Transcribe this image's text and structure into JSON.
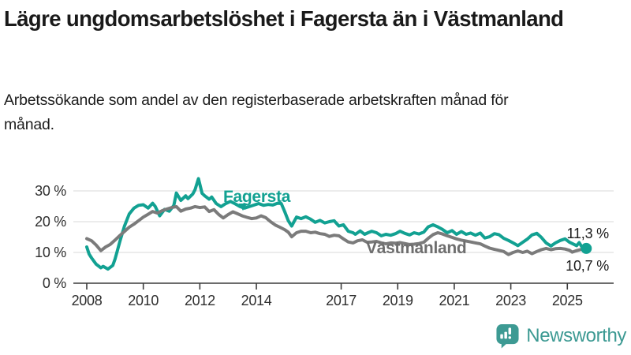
{
  "header": {
    "title": "Lägre ungdomsarbetslöshet i Fagersta än i Västmanland",
    "subtitle": "Arbetssökande som andel av den registerbaserade arbetskraften månad för månad."
  },
  "colors": {
    "fagersta": "#12a192",
    "vastmanland": "#7b7b7b",
    "vastmanland_label": "#6e6e6e",
    "grid": "#d8d8d8",
    "axis": "#3c3c3c",
    "text": "#1a1a1a",
    "logo": "#3d9a93",
    "background": "#ffffff"
  },
  "footer": {
    "brand": "Newsworthy"
  },
  "chart_data": {
    "type": "line",
    "title": "Lägre ungdomsarbetslöshet i Fagersta än i Västmanland",
    "xlabel": "",
    "ylabel": "",
    "x_unit": "decimal year (monthly series 2008–2025)",
    "ylim": [
      0,
      35
    ],
    "xlim": [
      2007.5,
      2026.3
    ],
    "grid": "horizontal",
    "legend": "inline series labels",
    "y_ticks": [
      {
        "value": 0,
        "label": "0 %"
      },
      {
        "value": 10,
        "label": "10 %"
      },
      {
        "value": 20,
        "label": "20 %"
      },
      {
        "value": 30,
        "label": "30 %"
      }
    ],
    "x_ticks": [
      {
        "value": 2008,
        "label": "2008"
      },
      {
        "value": 2010,
        "label": "2010"
      },
      {
        "value": 2012,
        "label": "2012"
      },
      {
        "value": 2014,
        "label": "2014"
      },
      {
        "value": 2017,
        "label": "2017"
      },
      {
        "value": 2019,
        "label": "2019"
      },
      {
        "value": 2021,
        "label": "2021"
      },
      {
        "value": 2023,
        "label": "2023"
      },
      {
        "value": 2025,
        "label": "2025"
      }
    ],
    "series": [
      {
        "name": "Fagersta",
        "color": "#12a192",
        "end_label": "11,3 %",
        "end_value": 11.3,
        "points": [
          [
            2008.0,
            11.8
          ],
          [
            2008.08,
            9.5
          ],
          [
            2008.17,
            8.2
          ],
          [
            2008.33,
            6.2
          ],
          [
            2008.5,
            5.0
          ],
          [
            2008.58,
            5.5
          ],
          [
            2008.75,
            4.6
          ],
          [
            2008.92,
            5.8
          ],
          [
            2009.0,
            7.8
          ],
          [
            2009.08,
            10.5
          ],
          [
            2009.17,
            13.5
          ],
          [
            2009.33,
            18.5
          ],
          [
            2009.5,
            22.5
          ],
          [
            2009.67,
            24.4
          ],
          [
            2009.83,
            25.3
          ],
          [
            2010.0,
            25.5
          ],
          [
            2010.17,
            24.4
          ],
          [
            2010.33,
            26.0
          ],
          [
            2010.42,
            25.0
          ],
          [
            2010.58,
            21.9
          ],
          [
            2010.75,
            24.0
          ],
          [
            2010.92,
            23.4
          ],
          [
            2011.08,
            25.3
          ],
          [
            2011.17,
            29.3
          ],
          [
            2011.33,
            26.9
          ],
          [
            2011.5,
            28.4
          ],
          [
            2011.58,
            27.5
          ],
          [
            2011.75,
            29.0
          ],
          [
            2011.83,
            30.4
          ],
          [
            2011.95,
            34.0
          ],
          [
            2012.08,
            29.2
          ],
          [
            2012.17,
            28.4
          ],
          [
            2012.33,
            27.3
          ],
          [
            2012.42,
            28.0
          ],
          [
            2012.58,
            25.9
          ],
          [
            2012.75,
            24.9
          ],
          [
            2012.92,
            25.9
          ],
          [
            2013.08,
            26.6
          ],
          [
            2013.25,
            25.8
          ],
          [
            2013.42,
            24.9
          ],
          [
            2013.58,
            24.4
          ],
          [
            2013.75,
            24.9
          ],
          [
            2013.92,
            25.4
          ],
          [
            2014.08,
            25.9
          ],
          [
            2014.25,
            25.3
          ],
          [
            2014.42,
            25.6
          ],
          [
            2014.58,
            25.4
          ],
          [
            2014.75,
            26.0
          ],
          [
            2014.88,
            25.9
          ],
          [
            2015.0,
            23.3
          ],
          [
            2015.13,
            20.3
          ],
          [
            2015.25,
            18.6
          ],
          [
            2015.42,
            21.5
          ],
          [
            2015.58,
            21.0
          ],
          [
            2015.75,
            21.6
          ],
          [
            2015.92,
            20.8
          ],
          [
            2016.08,
            19.8
          ],
          [
            2016.25,
            20.4
          ],
          [
            2016.42,
            19.6
          ],
          [
            2016.58,
            20.0
          ],
          [
            2016.75,
            20.3
          ],
          [
            2016.92,
            18.6
          ],
          [
            2017.08,
            19.0
          ],
          [
            2017.25,
            16.9
          ],
          [
            2017.42,
            16.4
          ],
          [
            2017.5,
            15.9
          ],
          [
            2017.67,
            17.0
          ],
          [
            2017.83,
            15.9
          ],
          [
            2017.95,
            16.4
          ],
          [
            2018.08,
            16.9
          ],
          [
            2018.25,
            16.4
          ],
          [
            2018.42,
            15.4
          ],
          [
            2018.58,
            15.9
          ],
          [
            2018.75,
            15.6
          ],
          [
            2018.92,
            16.1
          ],
          [
            2019.08,
            16.9
          ],
          [
            2019.25,
            16.2
          ],
          [
            2019.42,
            15.7
          ],
          [
            2019.58,
            16.4
          ],
          [
            2019.75,
            16.0
          ],
          [
            2019.92,
            16.6
          ],
          [
            2020.08,
            18.3
          ],
          [
            2020.25,
            19.0
          ],
          [
            2020.42,
            18.3
          ],
          [
            2020.58,
            17.5
          ],
          [
            2020.75,
            16.4
          ],
          [
            2020.92,
            17.1
          ],
          [
            2021.08,
            15.9
          ],
          [
            2021.25,
            16.8
          ],
          [
            2021.42,
            15.9
          ],
          [
            2021.58,
            16.3
          ],
          [
            2021.75,
            15.6
          ],
          [
            2021.92,
            16.3
          ],
          [
            2022.08,
            14.7
          ],
          [
            2022.25,
            15.1
          ],
          [
            2022.42,
            16.1
          ],
          [
            2022.58,
            15.8
          ],
          [
            2022.75,
            14.6
          ],
          [
            2022.92,
            13.9
          ],
          [
            2023.08,
            13.1
          ],
          [
            2023.25,
            12.2
          ],
          [
            2023.42,
            13.3
          ],
          [
            2023.58,
            14.3
          ],
          [
            2023.75,
            15.7
          ],
          [
            2023.92,
            16.2
          ],
          [
            2024.08,
            14.9
          ],
          [
            2024.25,
            13.1
          ],
          [
            2024.42,
            12.1
          ],
          [
            2024.58,
            13.1
          ],
          [
            2024.75,
            13.9
          ],
          [
            2024.92,
            14.4
          ],
          [
            2025.08,
            13.3
          ],
          [
            2025.17,
            12.9
          ],
          [
            2025.33,
            12.2
          ],
          [
            2025.42,
            13.2
          ],
          [
            2025.5,
            12.0
          ],
          [
            2025.67,
            11.3
          ]
        ]
      },
      {
        "name": "Västmanland",
        "color": "#7b7b7b",
        "end_label": "10,7 %",
        "end_value": 10.7,
        "points": [
          [
            2008.0,
            14.5
          ],
          [
            2008.17,
            13.8
          ],
          [
            2008.33,
            12.4
          ],
          [
            2008.5,
            10.6
          ],
          [
            2008.67,
            11.8
          ],
          [
            2008.83,
            12.6
          ],
          [
            2009.0,
            14.0
          ],
          [
            2009.17,
            15.5
          ],
          [
            2009.33,
            16.8
          ],
          [
            2009.5,
            18.2
          ],
          [
            2009.67,
            19.2
          ],
          [
            2009.83,
            20.3
          ],
          [
            2010.0,
            21.5
          ],
          [
            2010.17,
            22.4
          ],
          [
            2010.33,
            23.3
          ],
          [
            2010.5,
            22.8
          ],
          [
            2010.67,
            23.6
          ],
          [
            2010.83,
            24.1
          ],
          [
            2011.0,
            24.6
          ],
          [
            2011.17,
            24.9
          ],
          [
            2011.33,
            23.4
          ],
          [
            2011.5,
            24.1
          ],
          [
            2011.67,
            24.4
          ],
          [
            2011.83,
            24.9
          ],
          [
            2012.0,
            24.6
          ],
          [
            2012.17,
            24.8
          ],
          [
            2012.33,
            23.3
          ],
          [
            2012.5,
            23.9
          ],
          [
            2012.67,
            22.3
          ],
          [
            2012.83,
            21.2
          ],
          [
            2013.0,
            22.3
          ],
          [
            2013.17,
            23.2
          ],
          [
            2013.33,
            22.6
          ],
          [
            2013.5,
            21.9
          ],
          [
            2013.67,
            21.4
          ],
          [
            2013.83,
            21.0
          ],
          [
            2014.0,
            21.2
          ],
          [
            2014.17,
            21.9
          ],
          [
            2014.33,
            21.3
          ],
          [
            2014.5,
            20.0
          ],
          [
            2014.67,
            18.9
          ],
          [
            2014.83,
            18.2
          ],
          [
            2015.0,
            17.4
          ],
          [
            2015.13,
            16.6
          ],
          [
            2015.25,
            15.1
          ],
          [
            2015.42,
            16.4
          ],
          [
            2015.58,
            16.9
          ],
          [
            2015.75,
            16.9
          ],
          [
            2015.92,
            16.4
          ],
          [
            2016.08,
            16.6
          ],
          [
            2016.25,
            16.1
          ],
          [
            2016.42,
            15.9
          ],
          [
            2016.58,
            15.2
          ],
          [
            2016.75,
            15.6
          ],
          [
            2016.92,
            15.4
          ],
          [
            2017.08,
            14.4
          ],
          [
            2017.25,
            13.4
          ],
          [
            2017.42,
            13.1
          ],
          [
            2017.58,
            13.8
          ],
          [
            2017.75,
            14.1
          ],
          [
            2017.92,
            13.3
          ],
          [
            2018.08,
            13.4
          ],
          [
            2018.25,
            13.6
          ],
          [
            2018.42,
            13.1
          ],
          [
            2018.58,
            12.8
          ],
          [
            2018.75,
            13.1
          ],
          [
            2018.92,
            13.0
          ],
          [
            2019.08,
            13.2
          ],
          [
            2019.25,
            12.9
          ],
          [
            2019.42,
            12.6
          ],
          [
            2019.58,
            12.7
          ],
          [
            2019.75,
            12.9
          ],
          [
            2019.92,
            13.3
          ],
          [
            2020.08,
            14.6
          ],
          [
            2020.25,
            15.8
          ],
          [
            2020.42,
            16.4
          ],
          [
            2020.58,
            16.0
          ],
          [
            2020.75,
            15.4
          ],
          [
            2020.92,
            14.9
          ],
          [
            2021.08,
            14.4
          ],
          [
            2021.25,
            14.0
          ],
          [
            2021.42,
            13.7
          ],
          [
            2021.58,
            13.4
          ],
          [
            2021.75,
            13.1
          ],
          [
            2021.92,
            12.8
          ],
          [
            2022.08,
            12.1
          ],
          [
            2022.25,
            11.4
          ],
          [
            2022.42,
            11.0
          ],
          [
            2022.58,
            10.7
          ],
          [
            2022.75,
            10.3
          ],
          [
            2022.92,
            9.3
          ],
          [
            2023.08,
            10.0
          ],
          [
            2023.25,
            10.5
          ],
          [
            2023.42,
            10.0
          ],
          [
            2023.58,
            10.4
          ],
          [
            2023.75,
            9.6
          ],
          [
            2023.92,
            10.3
          ],
          [
            2024.08,
            10.9
          ],
          [
            2024.25,
            11.3
          ],
          [
            2024.42,
            10.9
          ],
          [
            2024.58,
            11.2
          ],
          [
            2024.75,
            11.3
          ],
          [
            2024.92,
            11.1
          ],
          [
            2025.08,
            10.7
          ],
          [
            2025.17,
            10.1
          ],
          [
            2025.33,
            10.6
          ],
          [
            2025.5,
            11.0
          ],
          [
            2025.67,
            10.7
          ]
        ]
      }
    ],
    "end_dot_series": "Fagersta"
  }
}
